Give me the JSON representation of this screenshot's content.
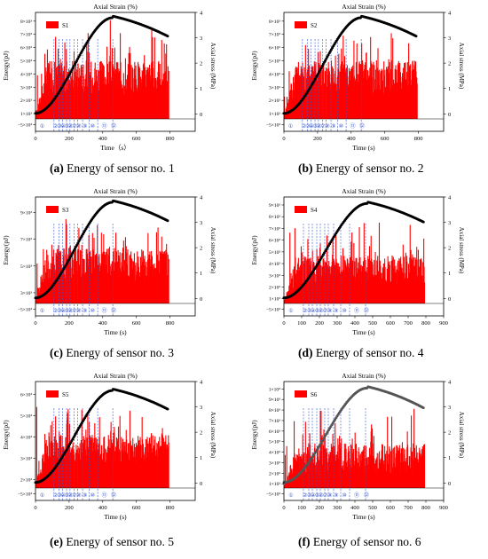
{
  "figure": {
    "shared_texts": {
      "top_axis_title": "Axial Strain (%)",
      "x_title": "Time (s)",
      "y_title": "Energy(pJ)",
      "right_title": "Axial stress (MPa)",
      "bottom_left_tick": "−5×10"
    },
    "colors": {
      "energy_bars": "#ff0000",
      "stress_curve": "#000000",
      "stress_curve_f": "#555555",
      "stage_lines": "#3355cc"
    }
  },
  "chart_data": [
    {
      "type": "bar",
      "panel_label": "(a)",
      "caption": "Energy of sensor no. 1",
      "legend": "S1",
      "title": "Axial Strain (%)",
      "xlabel": "Time（s）",
      "ylabel": "Energy(pJ)",
      "y2label": "Axial stress (MPa)",
      "xlim": [
        0,
        950
      ],
      "x_ticks": [
        "0",
        "200",
        "400",
        "600",
        "800"
      ],
      "x_tick_values": [
        0,
        200,
        400,
        600,
        800
      ],
      "y_ticks": [
        "−5×10³",
        "1×10³",
        "2×10³",
        "3×10³",
        "4×10³",
        "5×10³",
        "6×10³",
        "7×10³",
        "8×10³"
      ],
      "y2_ticks": [
        "0",
        "1",
        "2",
        "3",
        "4"
      ],
      "y2lim": [
        -0.2,
        4
      ],
      "stage_boundaries": [
        110,
        140,
        160,
        185,
        205,
        230,
        250,
        280,
        320,
        370,
        460
      ],
      "stages": [
        "①",
        "②",
        "③",
        "④",
        "⑤",
        "⑥",
        "⑦",
        "⑧",
        "⑨",
        "⑩",
        "⑪",
        "⑫"
      ],
      "bar_end": 790,
      "bar_base_range": [
        0.22,
        0.55
      ],
      "bar_peak": 0.95,
      "stress_peak_time": 460,
      "stress_peak": 3.85,
      "stress_end": 3.05,
      "stress_end_time": 790
    },
    {
      "type": "bar",
      "panel_label": "(b)",
      "caption": "Energy of sensor no. 2",
      "legend": "S2",
      "title": "Axial Strain (%)",
      "xlabel": "Time (s)",
      "ylabel": "Energy(pJ)",
      "y2label": "Axial stress (MPa)",
      "xlim": [
        0,
        950
      ],
      "x_ticks": [
        "0",
        "200",
        "400",
        "600",
        "800"
      ],
      "x_tick_values": [
        0,
        200,
        400,
        600,
        800
      ],
      "y_ticks": [
        "−5×10³",
        "1×10³",
        "2×10³",
        "3×10³",
        "4×10³",
        "5×10³",
        "6×10³",
        "7×10³",
        "8×10³"
      ],
      "y2_ticks": [
        "0",
        "1",
        "2",
        "3",
        "4"
      ],
      "y2lim": [
        -0.2,
        4
      ],
      "stage_boundaries": [
        110,
        140,
        160,
        185,
        205,
        230,
        250,
        280,
        320,
        370,
        460
      ],
      "stages": [
        "①",
        "②",
        "③",
        "④",
        "⑤",
        "⑥",
        "⑦",
        "⑧",
        "⑨",
        "⑩",
        "⑪",
        "⑫"
      ],
      "bar_end": 790,
      "bar_base_range": [
        0.22,
        0.55
      ],
      "bar_peak": 0.92,
      "stress_peak_time": 460,
      "stress_peak": 3.85,
      "stress_end": 3.05,
      "stress_end_time": 790
    },
    {
      "type": "bar",
      "panel_label": "(c)",
      "caption": "Energy of sensor no. 3",
      "legend": "S3",
      "title": "Axial Strain (%)",
      "xlabel": "Time (s)",
      "ylabel": "Energy(pJ)",
      "y2label": "Axial stress (MPa)",
      "xlim": [
        0,
        950
      ],
      "x_ticks": [
        "0",
        "200",
        "400",
        "600",
        "800"
      ],
      "x_tick_values": [
        0,
        200,
        400,
        600,
        800
      ],
      "y_ticks": [
        "−5×10³",
        "3×10³",
        "5×10³",
        "7×10³",
        "9×10³"
      ],
      "y2_ticks": [
        "0",
        "1",
        "2",
        "3",
        "4"
      ],
      "y2lim": [
        -0.2,
        4
      ],
      "stage_boundaries": [
        110,
        140,
        160,
        185,
        205,
        230,
        250,
        280,
        320,
        370,
        460
      ],
      "stages": [
        "①",
        "②",
        "③",
        "④",
        "⑤",
        "⑥",
        "⑦",
        "⑧",
        "⑨",
        "⑩",
        "⑪",
        "⑫"
      ],
      "bar_end": 790,
      "bar_base_range": [
        0.2,
        0.52
      ],
      "bar_peak": 0.82,
      "stress_peak_time": 460,
      "stress_peak": 3.85,
      "stress_end": 3.05,
      "stress_end_time": 790
    },
    {
      "type": "bar",
      "panel_label": "(d)",
      "caption": "Energy of sensor no. 4",
      "legend": "S4",
      "title": "Axial Strain (%)",
      "xlabel": "Time (s)",
      "ylabel": "Energy(pJ)",
      "y2label": "Axial stress (MPa)",
      "xlim": [
        0,
        900
      ],
      "x_ticks": [
        "0",
        "100",
        "200",
        "300",
        "400",
        "500",
        "600",
        "700",
        "800",
        "900"
      ],
      "x_tick_values": [
        0,
        100,
        200,
        300,
        400,
        500,
        600,
        700,
        800,
        900
      ],
      "y_ticks": [
        "−5×10³",
        "1×10³",
        "2×10³",
        "3×10³",
        "4×10³",
        "5×10³",
        "6×10³",
        "7×10³",
        "8×10³",
        "9×10³"
      ],
      "y2_ticks": [
        "0",
        "1",
        "2",
        "3",
        "4"
      ],
      "y2lim": [
        -0.2,
        4
      ],
      "stage_boundaries": [
        110,
        140,
        160,
        185,
        205,
        230,
        250,
        280,
        320,
        370,
        460
      ],
      "stages": [
        "①",
        "②",
        "③",
        "④",
        "⑤",
        "⑥",
        "⑦",
        "⑧",
        "⑨",
        "⑩",
        "⑪",
        "⑫"
      ],
      "bar_end": 790,
      "bar_base_range": [
        0.18,
        0.45
      ],
      "bar_peak": 0.8,
      "stress_peak_time": 470,
      "stress_peak": 3.8,
      "stress_end": 3.0,
      "stress_end_time": 790
    },
    {
      "type": "bar",
      "panel_label": "(e)",
      "caption": "Energy of sensor no. 5",
      "legend": "S5",
      "title": "Axial Strain (%)",
      "xlabel": "Time (s)",
      "ylabel": "Energy(pJ)",
      "y2label": "Axial stress (MPa)",
      "xlim": [
        0,
        950
      ],
      "x_ticks": [
        "0",
        "200",
        "400",
        "600",
        "800"
      ],
      "x_tick_values": [
        0,
        200,
        400,
        600,
        800
      ],
      "y_ticks": [
        "−5×10³",
        "2×10³",
        "3×10³",
        "4×10³",
        "5×10³",
        "6×10³"
      ],
      "y2_ticks": [
        "0",
        "1",
        "2",
        "3",
        "4"
      ],
      "y2lim": [
        -0.2,
        4
      ],
      "stage_boundaries": [
        110,
        140,
        160,
        185,
        205,
        230,
        250,
        280,
        320,
        370,
        460
      ],
      "stages": [
        "①",
        "②",
        "③",
        "④",
        "⑤",
        "⑥",
        "⑦",
        "⑧",
        "⑨",
        "⑩",
        "⑪",
        "⑫"
      ],
      "bar_end": 790,
      "bar_base_range": [
        0.22,
        0.5
      ],
      "bar_peak": 0.78,
      "stress_peak_time": 460,
      "stress_peak": 3.7,
      "stress_end": 2.9,
      "stress_end_time": 790
    },
    {
      "type": "bar",
      "panel_label": "(f)",
      "caption": "Energy of sensor no. 6",
      "legend": "S6",
      "title": "Axial Strain (%)",
      "xlabel": "Time (s)",
      "ylabel": "Energy(pJ)",
      "y2label": "Axial stress (MPa)",
      "xlim": [
        0,
        900
      ],
      "x_ticks": [
        "0",
        "100",
        "200",
        "300",
        "400",
        "500",
        "600",
        "700",
        "800",
        "900"
      ],
      "x_tick_values": [
        0,
        100,
        200,
        300,
        400,
        500,
        600,
        700,
        800,
        900
      ],
      "y_ticks": [
        "−5×10³",
        "1×10³",
        "2×10³",
        "3×10³",
        "4×10³",
        "5×10³",
        "6×10³",
        "7×10³",
        "8×10³",
        "9×10³",
        "1×10⁴"
      ],
      "y2_ticks": [
        "0",
        "1",
        "2",
        "3",
        "4"
      ],
      "y2lim": [
        -0.2,
        4
      ],
      "stage_boundaries": [
        110,
        140,
        160,
        185,
        205,
        230,
        250,
        280,
        320,
        370,
        460
      ],
      "stages": [
        "①",
        "②",
        "③",
        "④",
        "⑤",
        "⑥",
        "⑦",
        "⑧",
        "⑨",
        "⑩",
        "⑪",
        "⑫"
      ],
      "bar_end": 790,
      "bar_base_range": [
        0.12,
        0.42
      ],
      "bar_peak": 0.75,
      "stress_peak_time": 470,
      "stress_peak": 3.8,
      "stress_end": 2.95,
      "stress_end_time": 790
    }
  ]
}
